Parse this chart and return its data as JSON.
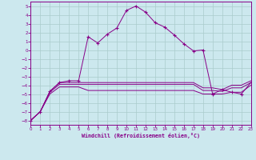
{
  "background_color": "#cce8ee",
  "grid_color": "#aacccc",
  "line_color": "#880088",
  "xlim": [
    0,
    23
  ],
  "ylim": [
    -8.5,
    5.5
  ],
  "xticks": [
    0,
    1,
    2,
    3,
    4,
    5,
    6,
    7,
    8,
    9,
    10,
    11,
    12,
    13,
    14,
    15,
    16,
    17,
    18,
    19,
    20,
    21,
    22,
    23
  ],
  "yticks": [
    5,
    4,
    3,
    2,
    1,
    0,
    -1,
    -2,
    -3,
    -4,
    -5,
    -6,
    -7,
    -8
  ],
  "xlabel": "Windchill (Refroidissement éolien,°C)",
  "spike_x": [
    0,
    1,
    2,
    3,
    4,
    5,
    6,
    7,
    8,
    9,
    10,
    11,
    12,
    13,
    14,
    15,
    16,
    17,
    18,
    19,
    20,
    21,
    22,
    23
  ],
  "spike_y": [
    -8.0,
    -7.0,
    -4.7,
    -3.7,
    -3.5,
    -3.5,
    1.5,
    0.8,
    1.8,
    2.5,
    4.5,
    5.0,
    4.3,
    3.1,
    2.6,
    1.7,
    0.7,
    -0.1,
    0.0,
    -5.0,
    -4.5,
    -4.8,
    -5.0,
    -3.7
  ],
  "flat1_x": [
    0,
    1,
    2,
    3,
    4,
    5,
    6,
    7,
    8,
    9,
    10,
    11,
    12,
    13,
    14,
    15,
    16,
    17,
    18,
    19,
    20,
    21,
    22,
    23
  ],
  "flat1_y": [
    -8.0,
    -7.0,
    -4.7,
    -3.7,
    -3.7,
    -3.7,
    -3.7,
    -3.7,
    -3.7,
    -3.7,
    -3.7,
    -3.7,
    -3.7,
    -3.7,
    -3.7,
    -3.7,
    -3.7,
    -3.7,
    -4.3,
    -4.3,
    -4.5,
    -4.0,
    -4.0,
    -3.5
  ],
  "flat2_y": [
    -8.0,
    -7.0,
    -4.8,
    -3.9,
    -3.9,
    -3.9,
    -3.9,
    -3.9,
    -3.9,
    -3.9,
    -3.9,
    -3.9,
    -3.9,
    -3.9,
    -3.9,
    -3.9,
    -3.9,
    -3.9,
    -4.6,
    -4.6,
    -4.7,
    -4.3,
    -4.3,
    -3.7
  ],
  "flat3_y": [
    -8.0,
    -7.0,
    -5.0,
    -4.2,
    -4.2,
    -4.2,
    -4.6,
    -4.6,
    -4.6,
    -4.6,
    -4.6,
    -4.6,
    -4.6,
    -4.6,
    -4.6,
    -4.6,
    -4.6,
    -4.6,
    -5.0,
    -5.0,
    -5.0,
    -4.8,
    -4.8,
    -4.0
  ]
}
